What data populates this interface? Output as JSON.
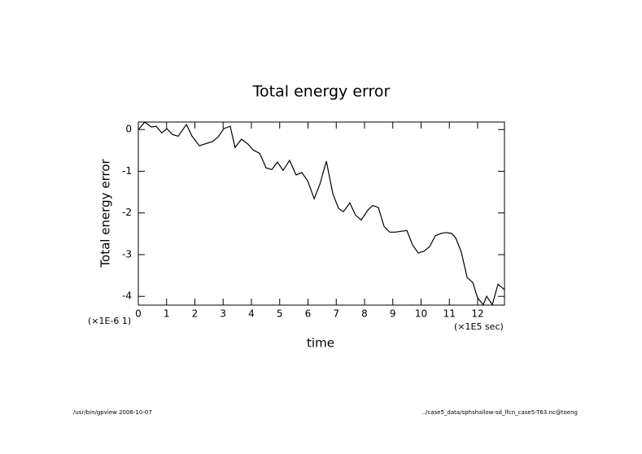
{
  "chart_data": {
    "type": "line",
    "title": "Total energy error",
    "y_label": "Total energy error",
    "x_label": "time",
    "y_scale_label": "(×1E-6 1)",
    "x_scale_label": "(×1E5 sec)",
    "footer_left": "/usr/bin/gpview  2006-10-07",
    "footer_right": "../case5_data/sphshallow-sd_lfcn_case5-T63.nc@toeng",
    "color": "#000000",
    "x": [
      0,
      0.23,
      0.46,
      0.63,
      0.83,
      1.01,
      1.21,
      1.41,
      1.7,
      1.9,
      2.16,
      2.42,
      2.62,
      2.82,
      3.02,
      3.25,
      3.42,
      3.65,
      3.88,
      4.06,
      4.29,
      4.52,
      4.72,
      4.92,
      5.12,
      5.35,
      5.58,
      5.78,
      5.99,
      6.22,
      6.42,
      6.65,
      6.88,
      7.08,
      7.25,
      7.48,
      7.68,
      7.88,
      8.12,
      8.29,
      8.49,
      8.69,
      8.89,
      9.09,
      9.29,
      9.5,
      9.7,
      9.9,
      10.1,
      10.3,
      10.5,
      10.71,
      10.88,
      11.08,
      11.22,
      11.42,
      11.63,
      11.83,
      12.0,
      12.2,
      12.32,
      12.52,
      12.72,
      12.95
    ],
    "values": [
      0,
      0.18,
      0.06,
      0.08,
      -0.08,
      0.02,
      -0.12,
      -0.16,
      0.12,
      -0.16,
      -0.39,
      -0.33,
      -0.29,
      -0.18,
      0.02,
      0.08,
      -0.43,
      -0.23,
      -0.35,
      -0.49,
      -0.57,
      -0.92,
      -0.96,
      -0.78,
      -0.98,
      -0.74,
      -1.09,
      -1.03,
      -1.23,
      -1.66,
      -1.31,
      -0.76,
      -1.54,
      -1.89,
      -1.97,
      -1.76,
      -2.05,
      -2.17,
      -1.93,
      -1.82,
      -1.87,
      -2.32,
      -2.46,
      -2.46,
      -2.44,
      -2.42,
      -2.77,
      -2.96,
      -2.92,
      -2.81,
      -2.55,
      -2.49,
      -2.47,
      -2.49,
      -2.59,
      -2.93,
      -3.55,
      -3.67,
      -4.04,
      -4.2,
      -4.0,
      -4.2,
      -3.71,
      -3.84
    ],
    "xlim": [
      0,
      12.95
    ],
    "ylim": [
      -4.21,
      0.18
    ],
    "xticks": [
      0,
      1,
      2,
      3,
      4,
      5,
      6,
      7,
      8,
      9,
      10,
      11,
      12
    ],
    "yticks": [
      0,
      -1,
      -2,
      -3,
      -4
    ]
  }
}
